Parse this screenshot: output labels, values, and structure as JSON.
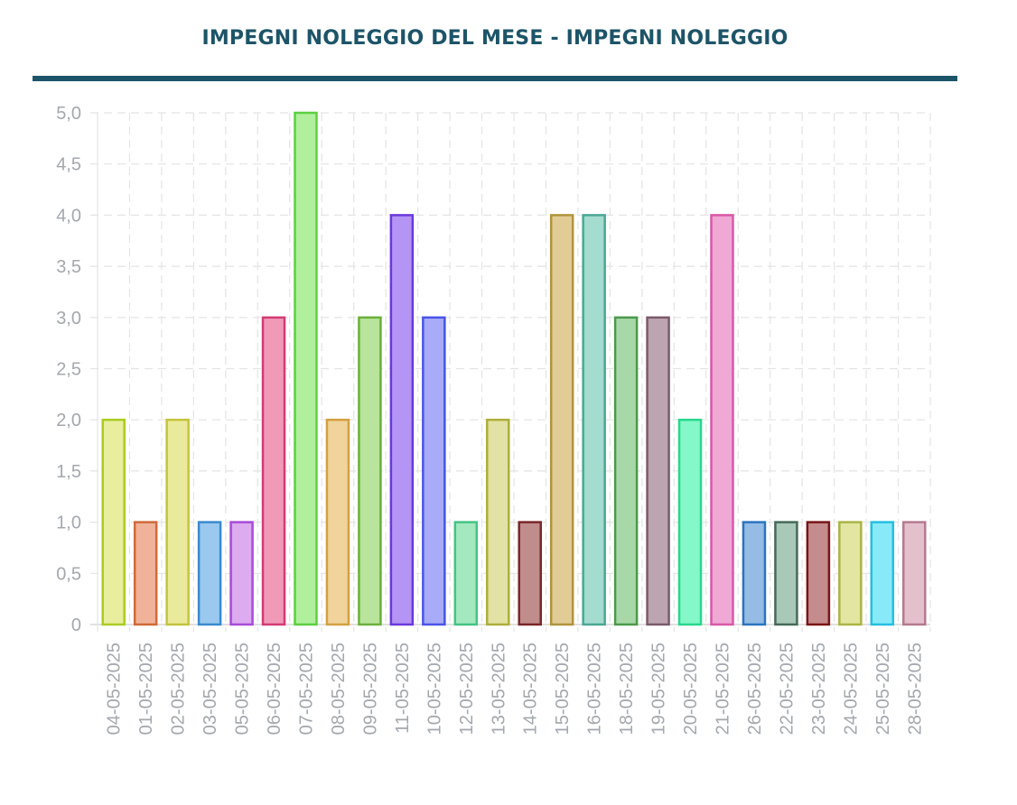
{
  "header": {
    "title": "IMPEGNI NOLEGGIO DEL MESE - IMPEGNI NOLEGGIO"
  },
  "chart_data": {
    "type": "bar",
    "title": "IMPEGNI NOLEGGIO DEL MESE - IMPEGNI NOLEGGIO",
    "xlabel": "",
    "ylabel": "",
    "ylim": [
      0,
      5
    ],
    "yticks": [
      "0",
      "0,5",
      "1,0",
      "1,5",
      "2,0",
      "2,5",
      "3,0",
      "3,5",
      "4,0",
      "4,5",
      "5,0"
    ],
    "grid": true,
    "categories": [
      "04-05-2025",
      "01-05-2025",
      "02-05-2025",
      "03-05-2025",
      "05-05-2025",
      "06-05-2025",
      "07-05-2025",
      "08-05-2025",
      "09-05-2025",
      "11-05-2025",
      "10-05-2025",
      "12-05-2025",
      "13-05-2025",
      "14-05-2025",
      "15-05-2025",
      "16-05-2025",
      "18-05-2025",
      "19-05-2025",
      "20-05-2025",
      "21-05-2025",
      "26-05-2025",
      "22-05-2025",
      "23-05-2025",
      "24-05-2025",
      "25-05-2025",
      "28-05-2025"
    ],
    "values": [
      2,
      1,
      2,
      1,
      1,
      3,
      5,
      2,
      3,
      4,
      3,
      1,
      2,
      1,
      4,
      4,
      3,
      3,
      2,
      4,
      1,
      1,
      1,
      1,
      1,
      1
    ],
    "fill_colors": [
      "#e8ee9e",
      "#f0b39a",
      "#eaea9c",
      "#9ac8ee",
      "#dcabf0",
      "#f09ab8",
      "#b0f09c",
      "#f0d49c",
      "#b8e49c",
      "#b494f4",
      "#a8acf8",
      "#a4e8c0",
      "#e2e2a4",
      "#c08c8c",
      "#e2cc96",
      "#a4dcd0",
      "#a8d8a8",
      "#bca4b0",
      "#84f8c8",
      "#f0a8d4",
      "#94bce4",
      "#a8c8b8",
      "#c48c8c",
      "#e2e6a0",
      "#88eaf8",
      "#e4c0cc"
    ],
    "stroke_colors": [
      "#aacc22",
      "#d06a38",
      "#c4c43c",
      "#3a8ad0",
      "#a84ad8",
      "#d43a74",
      "#5cd040",
      "#d4a040",
      "#6ab03c",
      "#6a38dc",
      "#4a54e8",
      "#44c484",
      "#aeae3c",
      "#7a2626",
      "#b0943a",
      "#4aa894",
      "#4a9a4a",
      "#7a5a6a",
      "#28d88c",
      "#d858a8",
      "#2a74c0",
      "#466a58",
      "#7a1414",
      "#aab444",
      "#22c0e0",
      "#b47a90"
    ]
  }
}
